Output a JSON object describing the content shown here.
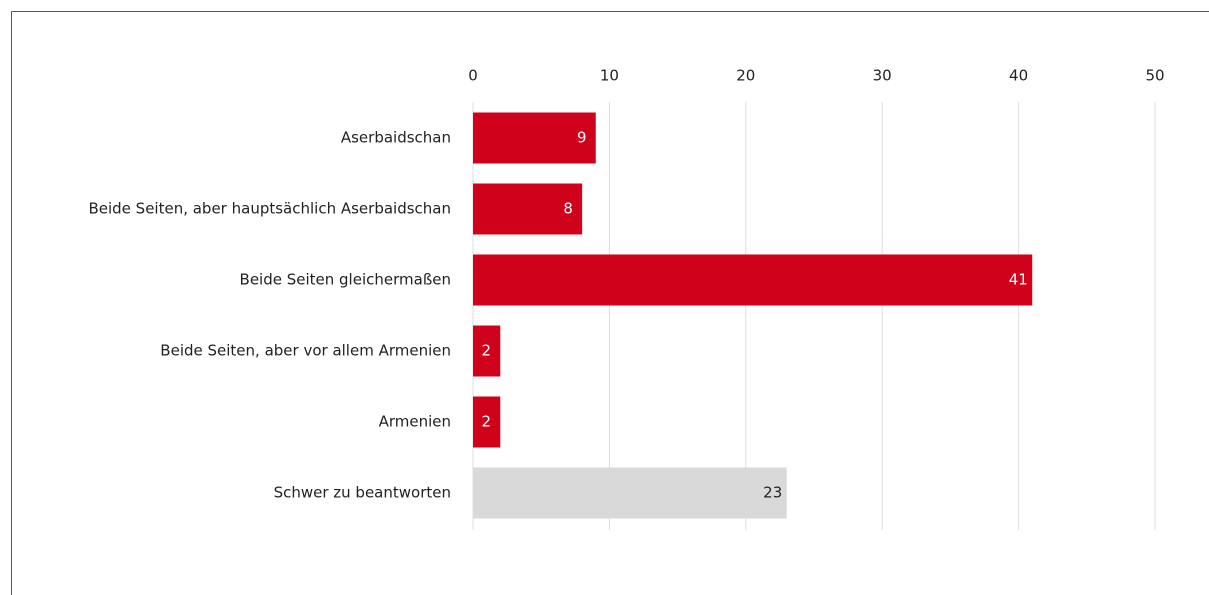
{
  "chart_data": {
    "type": "bar",
    "orientation": "horizontal",
    "categories": [
      "Aserbaidschan",
      "Beide Seiten, aber hauptsächlich Aserbaidschan",
      "Beide Seiten gleichermaßen",
      "Beide Seiten, aber vor allem Armenien",
      "Armenien",
      "Schwer zu beantworten"
    ],
    "values": [
      9,
      8,
      41,
      2,
      2,
      23
    ],
    "colors": [
      "#d0021b",
      "#d0021b",
      "#d0021b",
      "#d0021b",
      "#d0021b",
      "#d9d9d9"
    ],
    "value_label_colors": [
      "#ffffff",
      "#ffffff",
      "#ffffff",
      "#ffffff",
      "#ffffff",
      "#222222"
    ],
    "xlim": [
      0,
      50
    ],
    "xticks": [
      0,
      10,
      20,
      30,
      40,
      50
    ],
    "grid": true
  }
}
